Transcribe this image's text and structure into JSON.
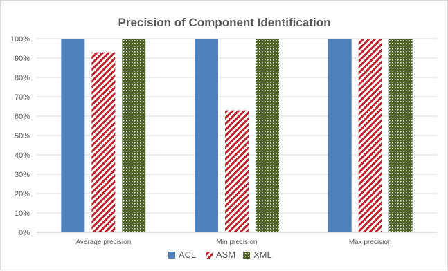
{
  "chart_data": {
    "type": "bar",
    "title": "Precision of Component Identification",
    "categories": [
      "Average precision",
      "Min precision",
      "Max precision"
    ],
    "series": [
      {
        "name": "ACL",
        "values": [
          100,
          100,
          100
        ],
        "color": "#4f81bd",
        "pattern": "solid"
      },
      {
        "name": "ASM",
        "values": [
          93,
          63,
          100
        ],
        "color": "#c0202a",
        "pattern": "diagonal-stripes"
      },
      {
        "name": "XML",
        "values": [
          100,
          100,
          100
        ],
        "color": "#4f6228",
        "pattern": "dotted-grid"
      }
    ],
    "ylim": [
      0,
      100
    ],
    "yticks": [
      "0%",
      "10%",
      "20%",
      "30%",
      "40%",
      "50%",
      "60%",
      "70%",
      "80%",
      "90%",
      "100%"
    ],
    "grid": true,
    "legend_position": "bottom"
  }
}
